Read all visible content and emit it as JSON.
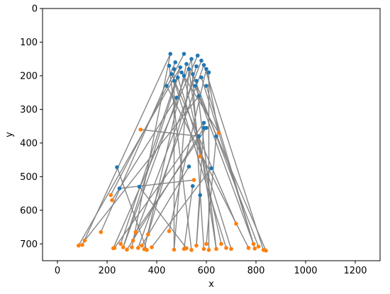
{
  "chart_data": {
    "type": "scatter",
    "title": "",
    "xlabel": "x",
    "ylabel": "y",
    "xlim": [
      -60,
      1300
    ],
    "ylim": [
      750,
      0
    ],
    "y_inverted": true,
    "grid": false,
    "xticks": [
      0,
      200,
      400,
      600,
      800,
      1000,
      1200
    ],
    "yticks": [
      0,
      100,
      200,
      300,
      400,
      500,
      600,
      700
    ],
    "colors": {
      "series_a": "#1f77b4",
      "series_b": "#ff7f0e",
      "lines": "#808080"
    },
    "series": [
      {
        "values": [
          [
            455,
            135
          ],
          [
            510,
            135
          ],
          [
            565,
            140
          ],
          [
            540,
            150
          ],
          [
            580,
            155
          ],
          [
            590,
            168
          ],
          [
            475,
            160
          ],
          [
            495,
            175
          ],
          [
            520,
            165
          ],
          [
            560,
            172
          ],
          [
            600,
            180
          ],
          [
            470,
            180
          ],
          [
            450,
            170
          ],
          [
            530,
            180
          ],
          [
            610,
            190
          ],
          [
            500,
            190
          ],
          [
            485,
            205
          ],
          [
            440,
            230
          ],
          [
            600,
            230
          ],
          [
            555,
            230
          ],
          [
            570,
            260
          ],
          [
            480,
            265
          ],
          [
            590,
            340
          ],
          [
            590,
            355
          ],
          [
            600,
            355
          ],
          [
            570,
            380
          ],
          [
            530,
            470
          ],
          [
            240,
            472
          ],
          [
            620,
            475
          ],
          [
            545,
            528
          ],
          [
            330,
            530
          ],
          [
            250,
            535
          ],
          [
            575,
            555
          ],
          [
            640,
            380
          ],
          [
            560,
            215
          ],
          [
            510,
            200
          ],
          [
            470,
            215
          ],
          [
            460,
            195
          ],
          [
            580,
            205
          ],
          [
            545,
            195
          ]
        ]
      },
      {
        "values": [
          [
            85,
            705
          ],
          [
            100,
            703
          ],
          [
            110,
            690
          ],
          [
            175,
            665
          ],
          [
            215,
            555
          ],
          [
            220,
            570
          ],
          [
            225,
            713
          ],
          [
            230,
            712
          ],
          [
            255,
            700
          ],
          [
            265,
            710
          ],
          [
            280,
            717
          ],
          [
            300,
            710
          ],
          [
            305,
            690
          ],
          [
            315,
            665
          ],
          [
            325,
            712
          ],
          [
            335,
            360
          ],
          [
            340,
            705
          ],
          [
            350,
            716
          ],
          [
            360,
            718
          ],
          [
            365,
            672
          ],
          [
            380,
            710
          ],
          [
            450,
            662
          ],
          [
            470,
            717
          ],
          [
            510,
            715
          ],
          [
            520,
            713
          ],
          [
            540,
            718
          ],
          [
            550,
            510
          ],
          [
            560,
            705
          ],
          [
            575,
            440
          ],
          [
            590,
            715
          ],
          [
            600,
            700
          ],
          [
            610,
            718
          ],
          [
            640,
            715
          ],
          [
            650,
            370
          ],
          [
            660,
            700
          ],
          [
            680,
            712
          ],
          [
            700,
            715
          ],
          [
            720,
            640
          ],
          [
            770,
            712
          ],
          [
            790,
            700
          ],
          [
            795,
            714
          ],
          [
            810,
            708
          ],
          [
            830,
            718
          ],
          [
            840,
            720
          ]
        ]
      }
    ],
    "links": [
      [
        0,
        1
      ],
      [
        1,
        4
      ],
      [
        2,
        6
      ],
      [
        3,
        9
      ],
      [
        4,
        12
      ],
      [
        5,
        14
      ],
      [
        6,
        3
      ],
      [
        7,
        8
      ],
      [
        8,
        17
      ],
      [
        9,
        19
      ],
      [
        10,
        21
      ],
      [
        11,
        22
      ],
      [
        12,
        25
      ],
      [
        13,
        28
      ],
      [
        14,
        31
      ],
      [
        15,
        33
      ],
      [
        16,
        36
      ],
      [
        17,
        38
      ],
      [
        18,
        40
      ],
      [
        19,
        43
      ],
      [
        20,
        2
      ],
      [
        21,
        5
      ],
      [
        22,
        7
      ],
      [
        23,
        10
      ],
      [
        24,
        13
      ],
      [
        25,
        15
      ],
      [
        26,
        16
      ],
      [
        27,
        18
      ],
      [
        28,
        20
      ],
      [
        29,
        23
      ],
      [
        30,
        24
      ],
      [
        31,
        26
      ],
      [
        32,
        27
      ],
      [
        33,
        30
      ],
      [
        34,
        32
      ],
      [
        35,
        34
      ],
      [
        36,
        35
      ],
      [
        37,
        37
      ],
      [
        38,
        39
      ],
      [
        39,
        41
      ],
      [
        0,
        11
      ],
      [
        3,
        29
      ],
      [
        5,
        42
      ],
      [
        7,
        0
      ],
      [
        10,
        33
      ],
      [
        13,
        22
      ],
      [
        16,
        9
      ],
      [
        19,
        39
      ],
      [
        22,
        27
      ],
      [
        25,
        32
      ]
    ]
  }
}
